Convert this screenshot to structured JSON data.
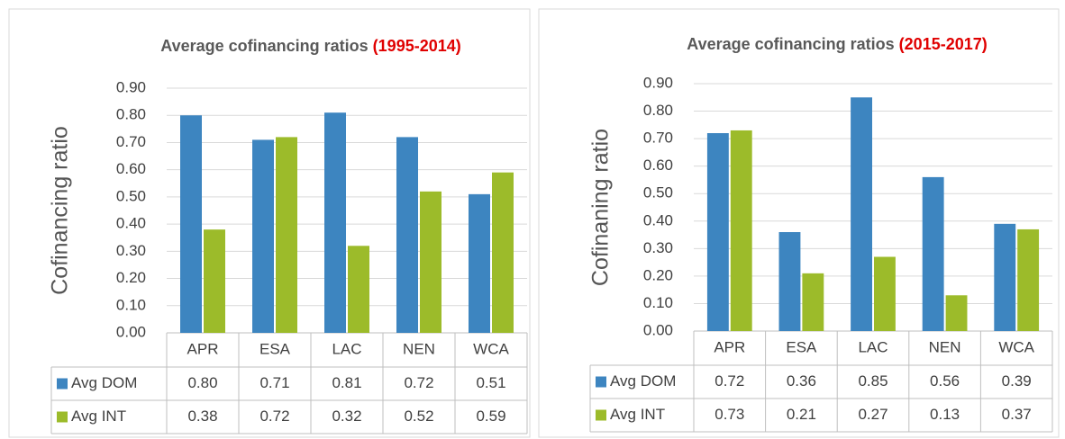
{
  "chart_data": [
    {
      "type": "bar",
      "title": "Average cofinancing ratios",
      "title_period": "(1995-2014)",
      "y_label": "Cofinancing ratio",
      "categories": [
        "APR",
        "ESA",
        "LAC",
        "NEN",
        "WCA"
      ],
      "series": [
        {
          "name": "Avg DOM",
          "color": "#3d85c0",
          "values": [
            0.8,
            0.71,
            0.81,
            0.72,
            0.51
          ],
          "value_labels": [
            "0.80",
            "0.71",
            "0.81",
            "0.72",
            "0.51"
          ]
        },
        {
          "name": "Avg INT",
          "color": "#9cbb2a",
          "values": [
            0.38,
            0.72,
            0.32,
            0.52,
            0.59
          ],
          "value_labels": [
            "0.38",
            "0.72",
            "0.32",
            "0.52",
            "0.59"
          ]
        }
      ],
      "ylim": [
        0,
        0.9
      ],
      "yticks": [
        {
          "value": 0,
          "label": "0.00"
        },
        {
          "value": 0.1,
          "label": "0.10"
        },
        {
          "value": 0.2,
          "label": "0.20"
        },
        {
          "value": 0.3,
          "label": "0.30"
        },
        {
          "value": 0.4,
          "label": "0.40"
        },
        {
          "value": 0.5,
          "label": "0.50"
        },
        {
          "value": 0.6,
          "label": "0.60"
        },
        {
          "value": 0.7,
          "label": "0.70"
        },
        {
          "value": 0.8,
          "label": "0.80"
        },
        {
          "value": 0.9,
          "label": "0.90"
        }
      ],
      "grid": true
    },
    {
      "type": "bar",
      "title": "Average cofinancing ratios",
      "title_period": "(2015-2017)",
      "y_label": "Cofinaning ratio",
      "categories": [
        "APR",
        "ESA",
        "LAC",
        "NEN",
        "WCA"
      ],
      "series": [
        {
          "name": "Avg DOM",
          "color": "#3d85c0",
          "values": [
            0.72,
            0.36,
            0.85,
            0.56,
            0.39
          ],
          "value_labels": [
            "0.72",
            "0.36",
            "0.85",
            "0.56",
            "0.39"
          ]
        },
        {
          "name": "Avg INT",
          "color": "#9cbb2a",
          "values": [
            0.73,
            0.21,
            0.27,
            0.13,
            0.37
          ],
          "value_labels": [
            "0.73",
            "0.21",
            "0.27",
            "0.13",
            "0.37"
          ]
        }
      ],
      "ylim": [
        0,
        0.9
      ],
      "yticks": [
        {
          "value": 0,
          "label": "0.00"
        },
        {
          "value": 0.1,
          "label": "0.10"
        },
        {
          "value": 0.2,
          "label": "0.20"
        },
        {
          "value": 0.3,
          "label": "0.30"
        },
        {
          "value": 0.4,
          "label": "0.40"
        },
        {
          "value": 0.5,
          "label": "0.50"
        },
        {
          "value": 0.6,
          "label": "0.60"
        },
        {
          "value": 0.7,
          "label": "0.70"
        },
        {
          "value": 0.8,
          "label": "0.80"
        },
        {
          "value": 0.9,
          "label": "0.90"
        }
      ],
      "grid": true
    }
  ]
}
